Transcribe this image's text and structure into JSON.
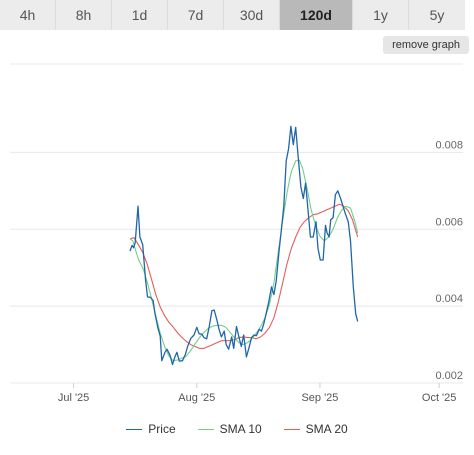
{
  "tabs": [
    {
      "label": "4h"
    },
    {
      "label": "8h"
    },
    {
      "label": "1d"
    },
    {
      "label": "7d"
    },
    {
      "label": "30d"
    },
    {
      "label": "120d",
      "active": true
    },
    {
      "label": "1y"
    },
    {
      "label": "5y"
    }
  ],
  "remove_graph_label": "remove graph",
  "colors": {
    "price": "#2066a8",
    "sma10": "#6fcf8a",
    "sma20": "#e0605a",
    "grid": "#e8e8e8",
    "tab_bg": "#ececec",
    "tab_active": "#b9b9b9"
  },
  "chart_data": {
    "type": "line",
    "title": "",
    "xlabel": "",
    "ylabel": "",
    "x_ticks": [
      {
        "label": "Jul '25",
        "day": 0
      },
      {
        "label": "Aug '25",
        "day": 31
      },
      {
        "label": "Sep '25",
        "day": 62
      },
      {
        "label": "Oct '25",
        "day": 92
      }
    ],
    "x_range_days": [
      -16,
      98
    ],
    "y_ticks": [
      0.002,
      0.004,
      0.006,
      0.008
    ],
    "y_tick_labels": [
      "0.002",
      "0.004",
      "0.006",
      "0.008"
    ],
    "ylim": [
      0.002,
      0.0103
    ],
    "grid": true,
    "legend_position": "bottom",
    "series": [
      {
        "name": "Price",
        "color": "#2066a8",
        "points": [
          [
            14.2,
            0.00543
          ],
          [
            14.7,
            0.00558
          ],
          [
            15.1,
            0.00552
          ],
          [
            15.5,
            0.00565
          ],
          [
            16.2,
            0.0066
          ],
          [
            16.7,
            0.0058
          ],
          [
            17.4,
            0.0056
          ],
          [
            18.1,
            0.0047
          ],
          [
            18.6,
            0.00424
          ],
          [
            19.3,
            0.00423
          ],
          [
            20,
            0.00415
          ],
          [
            20.5,
            0.0038
          ],
          [
            21.3,
            0.0034
          ],
          [
            21.8,
            0.00322
          ],
          [
            22.2,
            0.00258
          ],
          [
            23,
            0.0028
          ],
          [
            23.5,
            0.00288
          ],
          [
            24.3,
            0.00272
          ],
          [
            24.9,
            0.00248
          ],
          [
            25.5,
            0.00268
          ],
          [
            26,
            0.0028
          ],
          [
            26.6,
            0.00257
          ],
          [
            27.4,
            0.00258
          ],
          [
            28.1,
            0.00273
          ],
          [
            28.7,
            0.00295
          ],
          [
            29.5,
            0.00316
          ],
          [
            30.3,
            0.00325
          ],
          [
            31,
            0.00345
          ],
          [
            31.6,
            0.00328
          ],
          [
            32.3,
            0.00327
          ],
          [
            32.8,
            0.00318
          ],
          [
            33.5,
            0.00315
          ],
          [
            34.1,
            0.00345
          ],
          [
            34.8,
            0.00388
          ],
          [
            35.4,
            0.0039
          ],
          [
            36.1,
            0.00363
          ],
          [
            36.6,
            0.0034
          ],
          [
            37.2,
            0.0032
          ],
          [
            37.9,
            0.00335
          ],
          [
            38.4,
            0.003
          ],
          [
            39,
            0.00288
          ],
          [
            39.8,
            0.0032
          ],
          [
            40.3,
            0.0029
          ],
          [
            41,
            0.00347
          ],
          [
            41.6,
            0.0032
          ],
          [
            42.2,
            0.00295
          ],
          [
            42.8,
            0.00325
          ],
          [
            43.5,
            0.00268
          ],
          [
            44.1,
            0.0029
          ],
          [
            44.8,
            0.00318
          ],
          [
            45.4,
            0.00325
          ],
          [
            46,
            0.00323
          ],
          [
            46.7,
            0.0034
          ],
          [
            47.3,
            0.00335
          ],
          [
            47.9,
            0.00355
          ],
          [
            48.5,
            0.00383
          ],
          [
            49.1,
            0.0041
          ],
          [
            49.8,
            0.0045
          ],
          [
            50.4,
            0.0043
          ],
          [
            51,
            0.00465
          ],
          [
            51.7,
            0.00542
          ],
          [
            52.2,
            0.0059
          ],
          [
            52.9,
            0.0066
          ],
          [
            53.5,
            0.00778
          ],
          [
            54.1,
            0.0081
          ],
          [
            54.7,
            0.00868
          ],
          [
            55.3,
            0.0082
          ],
          [
            55.9,
            0.00865
          ],
          [
            56.5,
            0.0079
          ],
          [
            57.2,
            0.0071
          ],
          [
            57.8,
            0.0068
          ],
          [
            58.4,
            0.0072
          ],
          [
            59,
            0.0065
          ],
          [
            59.6,
            0.0058
          ],
          [
            60.3,
            0.0058
          ],
          [
            61,
            0.0062
          ],
          [
            61.5,
            0.0055
          ],
          [
            62.1,
            0.0052
          ],
          [
            62.8,
            0.0052
          ],
          [
            63.4,
            0.0061
          ],
          [
            63.8,
            0.0059
          ],
          [
            64.3,
            0.0058
          ],
          [
            64.7,
            0.00625
          ],
          [
            65.3,
            0.0063
          ],
          [
            65.9,
            0.0069
          ],
          [
            66.5,
            0.007
          ],
          [
            67.2,
            0.0068
          ],
          [
            67.8,
            0.0066
          ],
          [
            68.4,
            0.0064
          ],
          [
            69.1,
            0.0062
          ],
          [
            69.7,
            0.0057
          ],
          [
            70.4,
            0.0045
          ],
          [
            71,
            0.0038
          ],
          [
            71.5,
            0.0036
          ]
        ]
      },
      {
        "name": "SMA 10",
        "color": "#6fcf8a",
        "points": [
          [
            14.2,
            0.00575
          ],
          [
            14.9,
            0.0057
          ],
          [
            15.6,
            0.00545
          ],
          [
            16.4,
            0.0052
          ],
          [
            17.6,
            0.00495
          ],
          [
            18.6,
            0.0046
          ],
          [
            19.6,
            0.0042
          ],
          [
            20.7,
            0.00375
          ],
          [
            21.8,
            0.0033
          ],
          [
            22.9,
            0.00295
          ],
          [
            24,
            0.0027
          ],
          [
            25.1,
            0.00258
          ],
          [
            26.2,
            0.0026
          ],
          [
            27.3,
            0.00265
          ],
          [
            28.4,
            0.0027
          ],
          [
            29.5,
            0.00285
          ],
          [
            30.6,
            0.00302
          ],
          [
            31.7,
            0.00318
          ],
          [
            32.8,
            0.00332
          ],
          [
            33.9,
            0.00342
          ],
          [
            35,
            0.00348
          ],
          [
            36.1,
            0.0035
          ],
          [
            37.2,
            0.0035
          ],
          [
            38.3,
            0.00345
          ],
          [
            39.4,
            0.00332
          ],
          [
            40.5,
            0.00318
          ],
          [
            41.6,
            0.00305
          ],
          [
            42.7,
            0.003
          ],
          [
            43.8,
            0.00305
          ],
          [
            44.9,
            0.00315
          ],
          [
            46,
            0.0033
          ],
          [
            47.1,
            0.00347
          ],
          [
            48.2,
            0.0037
          ],
          [
            49.3,
            0.00405
          ],
          [
            50.4,
            0.0046
          ],
          [
            51.5,
            0.0054
          ],
          [
            52.6,
            0.0062
          ],
          [
            53.7,
            0.00695
          ],
          [
            54.8,
            0.0075
          ],
          [
            55.9,
            0.00778
          ],
          [
            56.8,
            0.0078
          ],
          [
            57.6,
            0.0076
          ],
          [
            58.7,
            0.0071
          ],
          [
            59.8,
            0.0065
          ],
          [
            60.9,
            0.0061
          ],
          [
            62,
            0.00582
          ],
          [
            63.1,
            0.0057
          ],
          [
            64.2,
            0.0058
          ],
          [
            65.3,
            0.006
          ],
          [
            66.4,
            0.0063
          ],
          [
            67.5,
            0.0065
          ],
          [
            68.6,
            0.0066
          ],
          [
            69.7,
            0.00655
          ],
          [
            70.8,
            0.0062
          ],
          [
            71.5,
            0.0059
          ]
        ]
      },
      {
        "name": "SMA 20",
        "color": "#e0605a",
        "points": [
          [
            14.2,
            0.00575
          ],
          [
            15.2,
            0.00578
          ],
          [
            16.3,
            0.0056
          ],
          [
            17.4,
            0.0054
          ],
          [
            18.5,
            0.0051
          ],
          [
            19.6,
            0.0047
          ],
          [
            20.7,
            0.0043
          ],
          [
            21.8,
            0.00398
          ],
          [
            22.9,
            0.00375
          ],
          [
            24,
            0.00358
          ],
          [
            25.1,
            0.00345
          ],
          [
            26.2,
            0.0033
          ],
          [
            27.3,
            0.00318
          ],
          [
            28.4,
            0.00308
          ],
          [
            29.5,
            0.003
          ],
          [
            30.6,
            0.00295
          ],
          [
            31.7,
            0.0029
          ],
          [
            32.8,
            0.0029
          ],
          [
            33.9,
            0.00295
          ],
          [
            35,
            0.003
          ],
          [
            36.1,
            0.00305
          ],
          [
            37.2,
            0.0031
          ],
          [
            38.3,
            0.0031
          ],
          [
            39.4,
            0.0031
          ],
          [
            40.5,
            0.00313
          ],
          [
            41.6,
            0.00318
          ],
          [
            42.7,
            0.0032
          ],
          [
            43.8,
            0.00318
          ],
          [
            44.9,
            0.00318
          ],
          [
            46,
            0.00315
          ],
          [
            47.1,
            0.0032
          ],
          [
            48.2,
            0.0033
          ],
          [
            49.3,
            0.00345
          ],
          [
            50.4,
            0.0037
          ],
          [
            51.5,
            0.0041
          ],
          [
            52.6,
            0.0046
          ],
          [
            53.7,
            0.0051
          ],
          [
            54.8,
            0.0055
          ],
          [
            55.9,
            0.0058
          ],
          [
            57,
            0.00605
          ],
          [
            58.1,
            0.0062
          ],
          [
            59.2,
            0.0063
          ],
          [
            60.3,
            0.00638
          ],
          [
            61.4,
            0.0064
          ],
          [
            62.5,
            0.00645
          ],
          [
            63.6,
            0.0065
          ],
          [
            64.7,
            0.00655
          ],
          [
            65.8,
            0.0066
          ],
          [
            66.9,
            0.00665
          ],
          [
            68,
            0.0066
          ],
          [
            69.1,
            0.00648
          ],
          [
            70.2,
            0.00625
          ],
          [
            71.5,
            0.0058
          ]
        ]
      }
    ]
  }
}
